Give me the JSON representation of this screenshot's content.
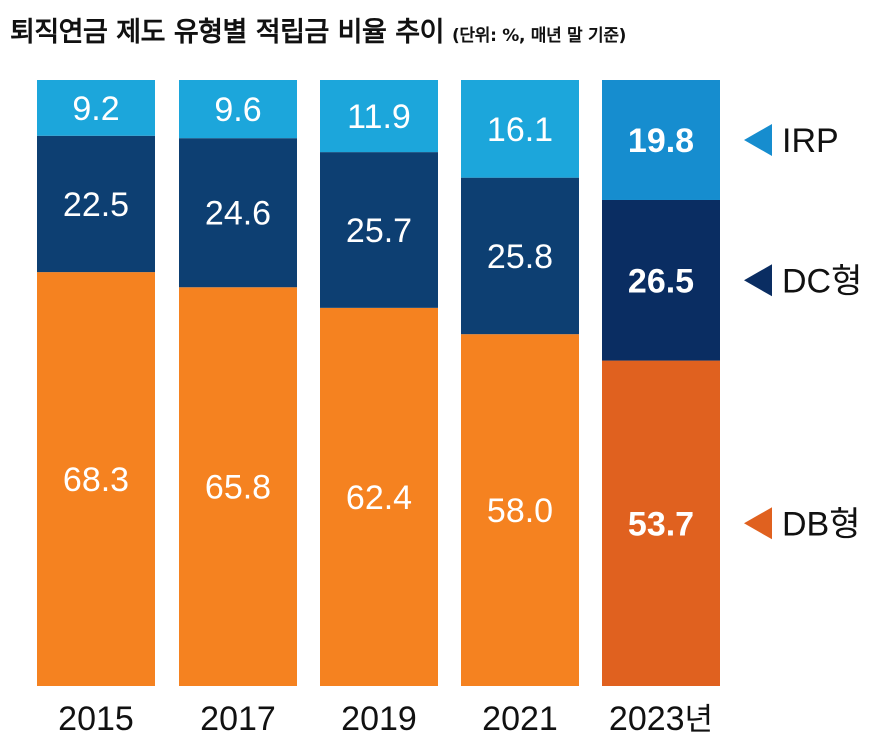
{
  "chart_data": {
    "type": "bar",
    "stacked": true,
    "title": "퇴직연금 제도 유형별 적립금 비율 추이",
    "unit_note": "(단위: %, 매년 말 기준)",
    "categories": [
      "2015",
      "2017",
      "2019",
      "2021",
      "2023"
    ],
    "last_category_suffix": "년",
    "series": [
      {
        "name": "DB형",
        "values": [
          68.3,
          65.8,
          62.4,
          58.0,
          53.7
        ],
        "color": "#F58220",
        "highlight_color": "#E0611F"
      },
      {
        "name": "DC형",
        "values": [
          22.5,
          24.6,
          25.7,
          25.8,
          26.5
        ],
        "color": "#0D3F72",
        "highlight_color": "#0A2D62"
      },
      {
        "name": "IRP",
        "values": [
          9.2,
          9.6,
          11.9,
          16.1,
          19.8
        ],
        "color": "#1CA6DB",
        "highlight_color": "#168DCF"
      }
    ],
    "value_labels": [
      [
        "68.3",
        "65.8",
        "62.4",
        "58.0",
        "53.7"
      ],
      [
        "22.5",
        "24.6",
        "25.7",
        "25.8",
        "26.5"
      ],
      [
        "9.2",
        "9.6",
        "11.9",
        "16.1",
        "19.8"
      ]
    ],
    "highlight_category_index": 4,
    "ylim": [
      0,
      100
    ],
    "legend_position": "right",
    "grid": false,
    "xlabel": "",
    "ylabel": ""
  }
}
